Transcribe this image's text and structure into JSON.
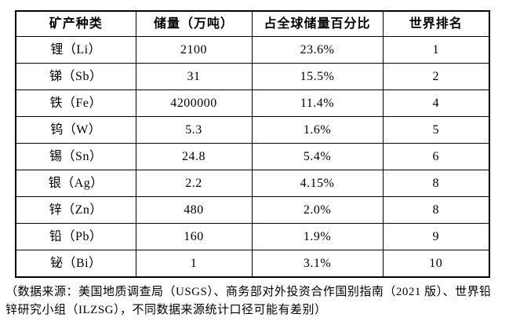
{
  "chart_data": {
    "type": "table",
    "title": "",
    "columns": [
      "矿产种类",
      "储量（万吨）",
      "占全球储量百分比",
      "世界排名"
    ],
    "rows": [
      [
        "锂（Li）",
        "2100",
        "23.6%",
        "1"
      ],
      [
        "锑（Sb）",
        "31",
        "15.5%",
        "2"
      ],
      [
        "铁（Fe）",
        "4200000",
        "11.4%",
        "4"
      ],
      [
        "钨（W）",
        "5.3",
        "1.6%",
        "5"
      ],
      [
        "锡（Sn）",
        "24.8",
        "5.4%",
        "6"
      ],
      [
        "银（Ag）",
        "2.2",
        "4.15%",
        "8"
      ],
      [
        "锌（Zn）",
        "480",
        "2.0%",
        "8"
      ],
      [
        "铅（Pb）",
        "160",
        "1.9%",
        "9"
      ],
      [
        "铋（Bi）",
        "1",
        "3.1%",
        "10"
      ]
    ],
    "source_note_lines": [
      "（数据来源：美国地质调查局（USGS）、商务部对外投资合作国别指南（2021 版）、世界铅",
      "锌研究小组（ILZSG），不同数据来源统计口径可能有差别）"
    ],
    "colors": {
      "border": "#000000",
      "text": "#000000",
      "background": "#ffffff"
    }
  }
}
